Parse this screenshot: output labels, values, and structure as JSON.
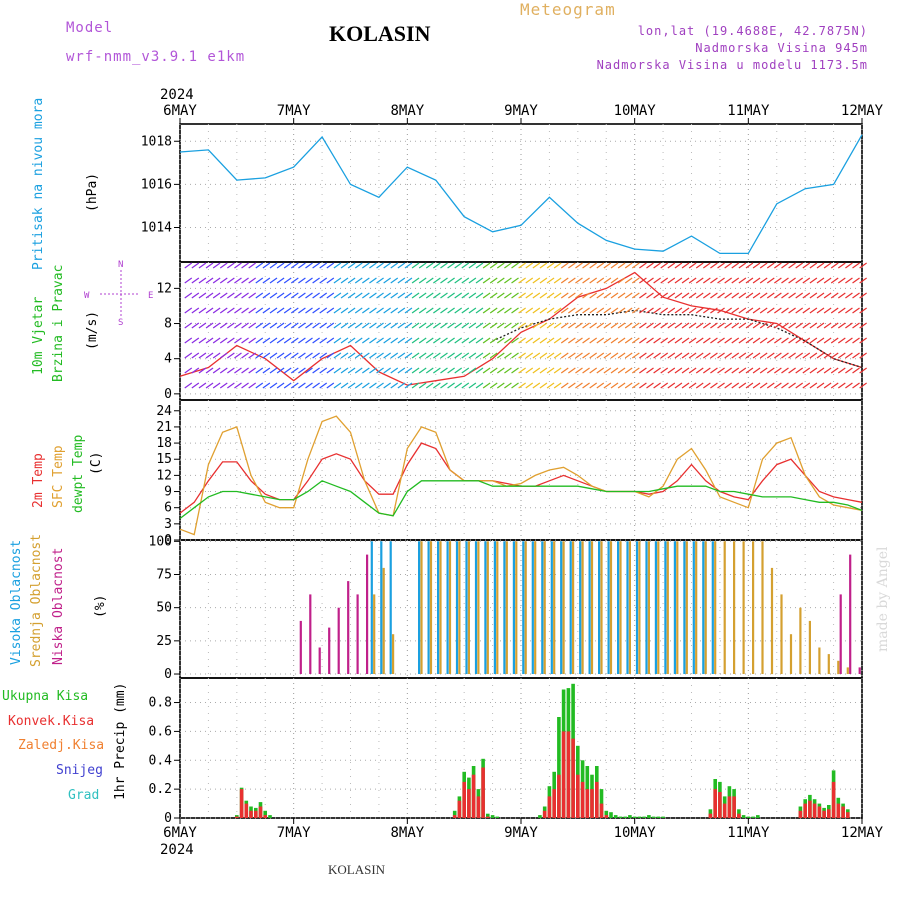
{
  "header": {
    "model_label": "Model",
    "model_value": "wrf-nmm_v3.9.1 e1km",
    "station": "KOLASIN",
    "product": "Meteogram",
    "coords": "lon,lat (19.4688E, 42.7875N)",
    "elevation": "Nadmorska Visina 945m",
    "model_elevation": "Nadmorska Visina u modelu 1173.5m",
    "footer_station": "KOLASIN",
    "credit": "made by Angel",
    "colors": {
      "model": "#b256d8",
      "station": "#000000",
      "product": "#e0b060",
      "coords": "#a040c0",
      "credit": "#d9d9d9"
    }
  },
  "time_axis": {
    "year": "2024",
    "ticks": [
      "6MAY",
      "7MAY",
      "8MAY",
      "9MAY",
      "10MAY",
      "11MAY",
      "12MAY"
    ],
    "minor_step_hours": 6
  },
  "panels": {
    "pressure": {
      "label": "Pritisak na nivou mora",
      "unit": "(hPa)",
      "label_color": "#1aa0e0"
    },
    "wind": {
      "label_line1": "10m Vjetar",
      "label_line2": "Brzina i Pravac",
      "unit": "(m/s)",
      "label_color": "#22bb22",
      "compass_n": "N",
      "compass_s": "S",
      "compass_w": "W",
      "compass_e": "E",
      "compass_color": "#b040d0"
    },
    "temp": {
      "labels": [
        "2m Temp",
        "SFC Temp",
        "dewpt Temp"
      ],
      "unit": "(C)",
      "colors": [
        "#e83030",
        "#e0a030",
        "#22bb22"
      ]
    },
    "cloud": {
      "labels": [
        "Visoka Oblacnost",
        "Srednja Oblacnost",
        "Niska Oblacnost"
      ],
      "unit": "(%)",
      "colors": [
        "#1aa0e0",
        "#d4a030",
        "#c0208a"
      ]
    },
    "precip": {
      "labels": [
        "Ukupna Kisa",
        "Konvek.Kisa",
        "Zaledj.Kisa",
        "Snijeg",
        "Grad"
      ],
      "unit": "1hr Precip (mm)",
      "colors": [
        "#22bb22",
        "#e83030",
        "#f08030",
        "#4040d0",
        "#30c0c0"
      ]
    }
  },
  "chart_data": [
    {
      "type": "line",
      "ylabel": "(hPa)",
      "ylim": [
        1012.4,
        1018.8
      ],
      "yticks": [
        1014,
        1016,
        1018
      ],
      "grid": true,
      "x_hours": [
        0,
        6,
        12,
        18,
        24,
        30,
        36,
        42,
        48,
        54,
        60,
        66,
        72,
        78,
        84,
        90,
        96,
        102,
        108,
        114,
        120,
        126,
        132,
        138,
        144
      ],
      "series": [
        {
          "color": "#1aa0e0",
          "values": [
            1017.5,
            1017.6,
            1016.2,
            1016.3,
            1016.8,
            1018.2,
            1016.0,
            1015.4,
            1016.8,
            1016.2,
            1014.5,
            1013.8,
            1014.1,
            1015.4,
            1014.2,
            1013.4,
            1013.0,
            1012.9,
            1013.6,
            1012.8,
            1012.8,
            1015.1,
            1015.8,
            1016.0,
            1018.3
          ]
        }
      ]
    },
    {
      "type": "line",
      "ylabel": "(m/s)",
      "ylim": [
        -0.7,
        15
      ],
      "yticks": [
        0,
        4,
        8,
        12
      ],
      "grid": true,
      "x_hours": [
        0,
        6,
        12,
        18,
        24,
        30,
        36,
        42,
        48,
        54,
        60,
        66,
        72,
        78,
        84,
        90,
        96,
        102,
        108,
        114,
        120,
        126,
        132,
        138,
        144
      ],
      "series": [
        {
          "color": "#e83030",
          "values": [
            2,
            3,
            5.5,
            4,
            1.5,
            4,
            5.5,
            2.5,
            1,
            1.5,
            2,
            4,
            7,
            8.5,
            11,
            12,
            13.8,
            11,
            10,
            9.5,
            8.5,
            8,
            6,
            4,
            3
          ]
        },
        {
          "color": "#222222",
          "values": [
            null,
            null,
            null,
            null,
            null,
            null,
            null,
            null,
            null,
            null,
            null,
            6,
            7.5,
            8.5,
            9,
            9,
            9.5,
            9,
            9,
            8.5,
            8.5,
            7.5,
            6,
            4,
            3
          ]
        }
      ]
    },
    {
      "type": "line",
      "ylabel": "(C)",
      "ylim": [
        0,
        26
      ],
      "yticks": [
        0,
        3,
        6,
        9,
        12,
        15,
        18,
        21,
        24
      ],
      "grid": true,
      "x_hours": [
        0,
        3,
        6,
        9,
        12,
        15,
        18,
        21,
        24,
        27,
        30,
        33,
        36,
        39,
        42,
        45,
        48,
        51,
        54,
        57,
        60,
        63,
        66,
        69,
        72,
        75,
        78,
        81,
        84,
        87,
        90,
        93,
        96,
        99,
        102,
        105,
        108,
        111,
        114,
        117,
        120,
        123,
        126,
        129,
        132,
        135,
        138,
        141,
        144
      ],
      "series": [
        {
          "name": "2m Temp",
          "color": "#e83030",
          "values": [
            5,
            7,
            11,
            14.5,
            14.5,
            11,
            8.5,
            7.5,
            7.5,
            11,
            15,
            16,
            15,
            11,
            8.5,
            8.5,
            14,
            18,
            17,
            13,
            11,
            11,
            11,
            10.5,
            10,
            10,
            11,
            12,
            11,
            10,
            9,
            9,
            9,
            8.5,
            9,
            11,
            14,
            11,
            9,
            8,
            7.5,
            11,
            14,
            15,
            12,
            9,
            8,
            7.5,
            7
          ]
        },
        {
          "name": "SFC Temp",
          "color": "#e0a030",
          "values": [
            2,
            1,
            14,
            20,
            21,
            12,
            7,
            6,
            6,
            15,
            22,
            23,
            20,
            11,
            5,
            4.5,
            17,
            21,
            20,
            13,
            11,
            11,
            11,
            10,
            10.5,
            12,
            13,
            13.5,
            12,
            10,
            9,
            9,
            9,
            8,
            10,
            15,
            17,
            13,
            8,
            7,
            6,
            15,
            18,
            19,
            12,
            8,
            6.5,
            6,
            5.5
          ]
        },
        {
          "name": "dewpt Temp",
          "color": "#22bb22",
          "values": [
            4,
            6,
            8,
            9,
            9,
            8.5,
            8,
            7.5,
            7.5,
            9,
            11,
            10,
            9,
            7,
            5,
            4.5,
            9,
            11,
            11,
            11,
            11,
            11,
            10,
            10,
            10,
            10,
            10,
            10,
            10,
            9.5,
            9,
            9,
            9,
            9,
            9.5,
            10,
            10,
            10,
            9,
            9,
            8.5,
            8,
            8,
            8,
            7.5,
            7,
            7,
            6.5,
            5.5
          ]
        }
      ]
    },
    {
      "type": "bar",
      "ylabel": "(%)",
      "ylim": [
        -3,
        101
      ],
      "yticks": [
        0,
        25,
        50,
        75,
        100
      ],
      "grid": true,
      "x_hours": [
        25,
        27,
        29,
        31,
        33,
        35,
        37,
        39,
        41,
        43,
        45,
        47,
        49,
        51,
        53,
        55,
        57,
        59,
        61,
        63,
        65,
        67,
        69,
        71,
        73,
        75,
        77,
        79,
        81,
        83,
        85,
        87,
        89,
        91,
        93,
        95,
        97,
        99,
        101,
        103,
        105,
        107,
        109,
        111,
        113,
        115,
        117,
        119,
        121,
        123,
        125,
        127,
        129,
        131,
        133,
        135,
        137,
        139,
        141,
        143
      ],
      "series": [
        {
          "name": "Visoka Oblacnost",
          "color": "#1aa0e0",
          "values": [
            0,
            0,
            0,
            0,
            0,
            0,
            0,
            0,
            100,
            100,
            100,
            0,
            0,
            100,
            100,
            100,
            100,
            100,
            100,
            100,
            100,
            100,
            100,
            100,
            100,
            100,
            100,
            100,
            100,
            100,
            100,
            100,
            100,
            100,
            100,
            100,
            100,
            100,
            100,
            100,
            100,
            100,
            100,
            100,
            100,
            0,
            0,
            0,
            0,
            0,
            0,
            0,
            0,
            0,
            0,
            0,
            0,
            0,
            0,
            0
          ]
        },
        {
          "name": "Srednja Oblacnost",
          "color": "#d4a030",
          "values": [
            0,
            0,
            0,
            0,
            0,
            0,
            0,
            0,
            60,
            80,
            30,
            0,
            0,
            100,
            100,
            100,
            100,
            100,
            100,
            100,
            100,
            100,
            100,
            100,
            100,
            100,
            100,
            100,
            100,
            100,
            100,
            100,
            100,
            100,
            100,
            100,
            100,
            100,
            100,
            100,
            100,
            100,
            100,
            100,
            100,
            100,
            100,
            100,
            100,
            100,
            80,
            60,
            30,
            50,
            40,
            20,
            15,
            10,
            5,
            0
          ]
        },
        {
          "name": "Niska Oblacnost",
          "color": "#c0208a",
          "values": [
            40,
            60,
            20,
            35,
            50,
            70,
            60,
            90,
            0,
            0,
            0,
            0,
            0,
            0,
            0,
            0,
            0,
            0,
            0,
            0,
            0,
            0,
            0,
            0,
            0,
            0,
            0,
            0,
            0,
            0,
            0,
            0,
            0,
            0,
            0,
            0,
            0,
            0,
            0,
            0,
            0,
            0,
            0,
            0,
            0,
            0,
            0,
            0,
            0,
            0,
            0,
            0,
            0,
            0,
            0,
            0,
            0,
            60,
            90,
            5
          ]
        }
      ]
    },
    {
      "type": "bar",
      "ylabel": "1hr Precip (mm)",
      "ylim": [
        0,
        0.97
      ],
      "yticks": [
        0,
        0.2,
        0.4,
        0.6,
        0.8
      ],
      "grid": true,
      "x_hours": [
        12,
        13,
        14,
        15,
        16,
        17,
        18,
        19,
        58,
        59,
        60,
        61,
        62,
        63,
        64,
        65,
        66,
        67,
        76,
        77,
        78,
        79,
        80,
        81,
        82,
        83,
        84,
        85,
        86,
        87,
        88,
        89,
        90,
        91,
        92,
        93,
        94,
        95,
        96,
        97,
        98,
        99,
        100,
        101,
        102,
        112,
        113,
        114,
        115,
        116,
        117,
        118,
        119,
        120,
        121,
        122,
        131,
        132,
        133,
        134,
        135,
        136,
        137,
        138,
        139,
        140,
        141
      ],
      "series": [
        {
          "name": "Ukupna Kisa",
          "color": "#22bb22",
          "values": [
            0.02,
            0.21,
            0.12,
            0.08,
            0.07,
            0.11,
            0.05,
            0.02,
            0.05,
            0.15,
            0.32,
            0.28,
            0.36,
            0.2,
            0.41,
            0.03,
            0.02,
            0.01,
            0.02,
            0.08,
            0.22,
            0.32,
            0.7,
            0.89,
            0.9,
            0.93,
            0.5,
            0.4,
            0.36,
            0.3,
            0.36,
            0.2,
            0.05,
            0.04,
            0.02,
            0.01,
            0.01,
            0.02,
            0.01,
            0.01,
            0.01,
            0.02,
            0.01,
            0.01,
            0.01,
            0.06,
            0.27,
            0.25,
            0.15,
            0.22,
            0.2,
            0.06,
            0.02,
            0.01,
            0.01,
            0.02,
            0.08,
            0.13,
            0.16,
            0.13,
            0.1,
            0.07,
            0.09,
            0.33,
            0.14,
            0.1,
            0.06
          ]
        },
        {
          "name": "Konvek.Kisa",
          "color": "#e83030",
          "values": [
            0.01,
            0.2,
            0.1,
            0.05,
            0.05,
            0.08,
            0.02,
            0,
            0.02,
            0.12,
            0.25,
            0.2,
            0.3,
            0.15,
            0.35,
            0.01,
            0,
            0,
            0,
            0.05,
            0.15,
            0.2,
            0.3,
            0.6,
            0.6,
            0.55,
            0.3,
            0.25,
            0.2,
            0.2,
            0.25,
            0.1,
            0.02,
            0,
            0,
            0,
            0,
            0,
            0,
            0,
            0,
            0,
            0,
            0,
            0,
            0.03,
            0.2,
            0.18,
            0.1,
            0.15,
            0.15,
            0.03,
            0,
            0,
            0,
            0,
            0.05,
            0.1,
            0.12,
            0.1,
            0.08,
            0.05,
            0.06,
            0.25,
            0.1,
            0.08,
            0.04
          ]
        }
      ]
    }
  ]
}
